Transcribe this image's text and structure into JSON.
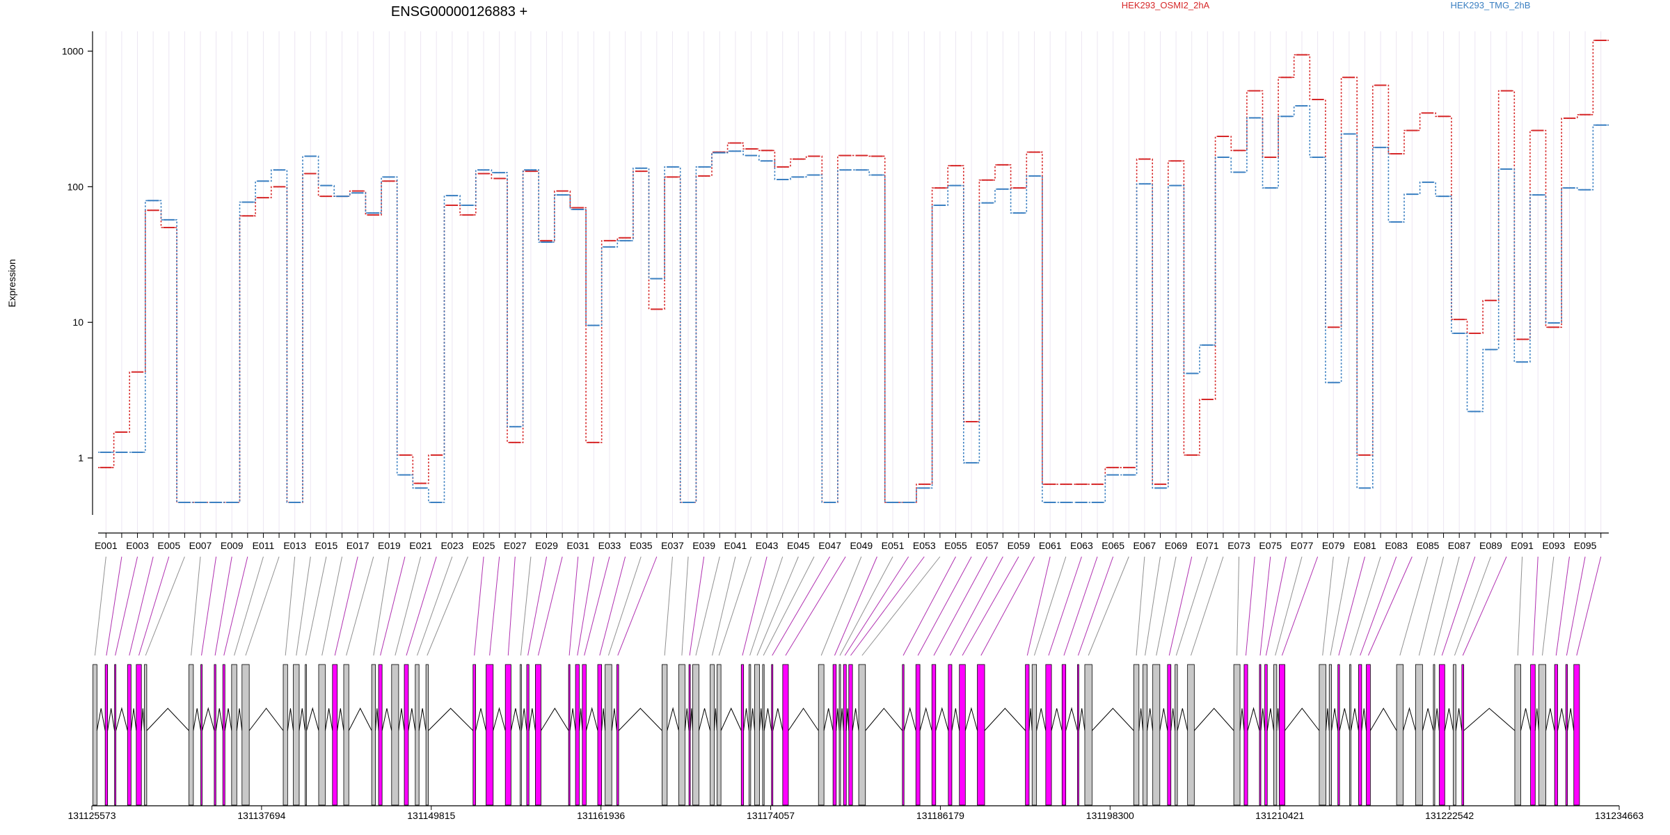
{
  "title": "ENSG00000126883 +",
  "ylabel": "Expression",
  "legend": [
    {
      "name": "HEK293_OSMI2_2hA",
      "color": "#d62728"
    },
    {
      "name": "HEK293_TMG_2hB",
      "color": "#3a7fc1"
    }
  ],
  "genomic_axis": {
    "start": 131125573,
    "end": 131234663,
    "ticks": [
      "131125573",
      "131137694",
      "131149815",
      "131161936",
      "131174057",
      "131186179",
      "131198300",
      "131210421",
      "131222542",
      "131234663"
    ]
  },
  "colors": {
    "exon_significant": "#ff00ff",
    "exon_other": "#c8c8c8",
    "intron": "#000000",
    "grid": "#ece6f2",
    "connector_significant": "#b030b0",
    "connector_other": "#909090"
  },
  "chart_data": {
    "type": "line",
    "scale": "log",
    "title": "ENSG00000126883 +",
    "ylabel": "Expression",
    "y_ticks": [
      1,
      10,
      100,
      1000
    ],
    "ylim": [
      0.38,
      1400
    ],
    "categories": [
      "E001",
      "E002",
      "E003",
      "E004",
      "E005",
      "E006",
      "E007",
      "E008",
      "E009",
      "E010",
      "E011",
      "E012",
      "E013",
      "E014",
      "E015",
      "E016",
      "E017",
      "E018",
      "E019",
      "E020",
      "E021",
      "E022",
      "E023",
      "E024",
      "E025",
      "E026",
      "E027",
      "E028",
      "E029",
      "E030",
      "E031",
      "E032",
      "E033",
      "E034",
      "E035",
      "E036",
      "E037",
      "E038",
      "E039",
      "E040",
      "E041",
      "E042",
      "E043",
      "E044",
      "E045",
      "E046",
      "E047",
      "E048",
      "E049",
      "E050",
      "E051",
      "E052",
      "E053",
      "E054",
      "E055",
      "E056",
      "E057",
      "E058",
      "E059",
      "E060",
      "E061",
      "E062",
      "E063",
      "E064",
      "E065",
      "E066",
      "E067",
      "E068",
      "E069",
      "E070",
      "E071",
      "E072",
      "E073",
      "E074",
      "E075",
      "E076",
      "E077",
      "E078",
      "E079",
      "E080",
      "E081",
      "E082",
      "E083",
      "E084",
      "E085",
      "E086",
      "E087",
      "E088",
      "E089",
      "E090",
      "E091",
      "E092",
      "E093",
      "E094",
      "E095",
      "E096"
    ],
    "x_tick_labels": [
      "E001",
      "E003",
      "E005",
      "E007",
      "E009",
      "E011",
      "E013",
      "E015",
      "E017",
      "E019",
      "E021",
      "E023",
      "E025",
      "E027",
      "E029",
      "E031",
      "E033",
      "E035",
      "E037",
      "E039",
      "E041",
      "E043",
      "E045",
      "E047",
      "E049",
      "E051",
      "E053",
      "E055",
      "E057",
      "E059",
      "E061",
      "E063",
      "E065",
      "E067",
      "E069",
      "E071",
      "E073",
      "E075",
      "E077",
      "E079",
      "E081",
      "E083",
      "E085",
      "E087",
      "E089",
      "E091",
      "E093",
      "E095"
    ],
    "series": [
      {
        "name": "HEK293_OSMI2_2hA",
        "color": "#d62728",
        "values": [
          0.85,
          1.55,
          4.3,
          67,
          50,
          0.47,
          0.47,
          0.47,
          0.47,
          61,
          83,
          100,
          0.47,
          125,
          85,
          85,
          93,
          62,
          110,
          1.05,
          0.65,
          1.05,
          73,
          62,
          125,
          115,
          1.3,
          130,
          40,
          93,
          70,
          1.3,
          40,
          42,
          130,
          12.5,
          118,
          0.47,
          120,
          180,
          210,
          190,
          185,
          140,
          160,
          168,
          0.47,
          170,
          170,
          168,
          0.47,
          0.47,
          0.64,
          98,
          143,
          1.85,
          112,
          145,
          98,
          180,
          0.64,
          0.64,
          0.64,
          0.64,
          0.85,
          0.85,
          160,
          0.64,
          155,
          1.05,
          2.7,
          235,
          185,
          510,
          165,
          640,
          940,
          440,
          9.2,
          640,
          1.05,
          560,
          175,
          260,
          350,
          330,
          10.5,
          8.3,
          14.5,
          510,
          7.5,
          260,
          9.2,
          320,
          340,
          1200
        ]
      },
      {
        "name": "HEK293_TMG_2hB",
        "color": "#3a7fc1",
        "values": [
          1.1,
          1.1,
          1.1,
          79,
          57,
          0.47,
          0.47,
          0.47,
          0.47,
          77,
          110,
          133,
          0.47,
          168,
          102,
          85,
          90,
          64,
          118,
          0.75,
          0.6,
          0.47,
          86,
          73,
          133,
          127,
          1.7,
          133,
          39,
          87,
          68,
          9.5,
          36,
          40,
          137,
          21,
          140,
          0.47,
          140,
          178,
          183,
          170,
          155,
          113,
          118,
          122,
          0.47,
          133,
          133,
          122,
          0.47,
          0.47,
          0.6,
          73,
          102,
          0.92,
          76,
          96,
          64,
          120,
          0.47,
          0.47,
          0.47,
          0.47,
          0.75,
          0.75,
          105,
          0.6,
          102,
          4.2,
          6.8,
          165,
          128,
          322,
          98,
          330,
          395,
          165,
          3.6,
          245,
          0.6,
          195,
          55,
          88,
          108,
          85,
          8.3,
          2.2,
          6.3,
          135,
          5.1,
          87,
          9.9,
          98,
          95,
          285
        ]
      }
    ]
  }
}
